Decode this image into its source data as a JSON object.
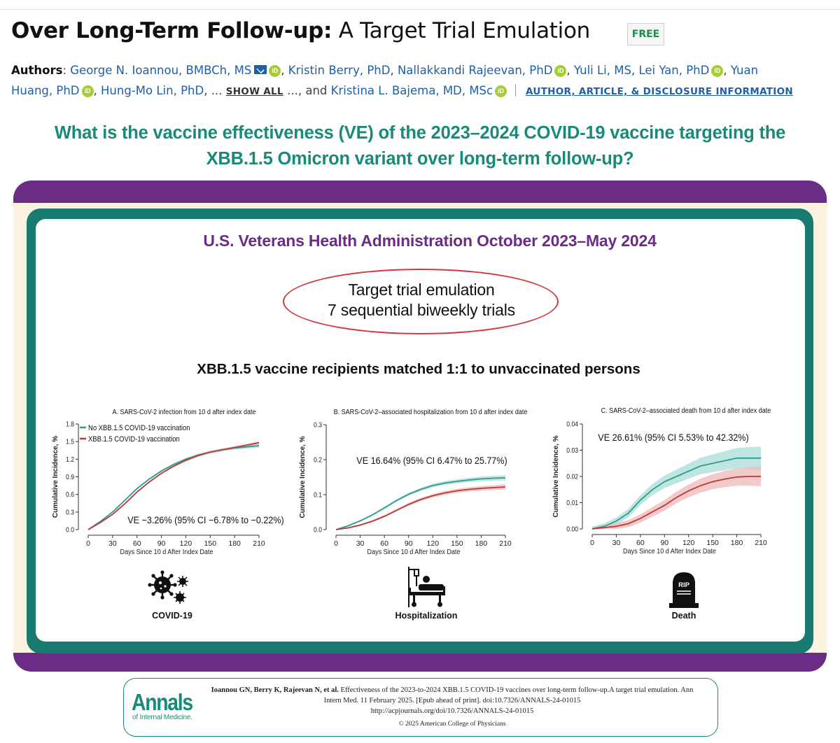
{
  "article": {
    "title_bold": "Over Long-Term Follow-up:",
    "title_rest": " A Target Trial Emulation",
    "free_badge": "FREE"
  },
  "authors": {
    "label": "Authors",
    "list": [
      "George N. Ioannou, BMBCh, MS",
      "Kristin Berry, PhD",
      "Nallakkandi Rajeevan, PhD",
      "Yuli Li, MS",
      "Lei Yan, PhD",
      "Yuan",
      "Huang, PhD",
      "Hung-Mo Lin, PhD",
      "Kristina L. Bajema, MD, MSc"
    ],
    "show_all": "SHOW ALL",
    "and_text": ", and",
    "ellipsis": "...",
    "ellipsis2": "...",
    "disclosure_link": "AUTHOR, ARTICLE, & DISCLOSURE INFORMATION",
    "orcid_glyph": "iD"
  },
  "abstract": {
    "question_line1": "What is the vaccine effectiveness (VE) of the 2023–2024 COVID-19 vaccine targeting the",
    "question_line2": "XBB.1.5 Omicron variant over long-term follow-up?",
    "study_title": "U.S. Veterans Health Administration October 2023–May 2024",
    "design_line1": "Target trial emulation",
    "design_line2": "7 sequential biweekly trials",
    "matching": "XBB.1.5 vaccine recipients matched 1:1 to unvaccinated persons"
  },
  "colors": {
    "teal": "#1a8a78",
    "purple": "#6b2c86",
    "series_unvacc": "#2e9c8e",
    "series_vacc": "#b83a3a",
    "band_unvacc": "#a8dcd6",
    "band_vacc": "#efb8b8"
  },
  "chart_data": [
    {
      "type": "line",
      "title": "A. SARS-CoV-2 infection from 10 d after index date",
      "xlabel": "Days Since 10 d After Index Date",
      "ylabel": "Cumulative Incidence, %",
      "xlim": [
        0,
        210
      ],
      "ylim": [
        0,
        1.8
      ],
      "xticks": [
        0,
        30,
        60,
        90,
        120,
        150,
        180,
        210
      ],
      "yticks": [
        0.0,
        0.3,
        0.6,
        0.9,
        1.2,
        1.5,
        1.8
      ],
      "ytick_labels": [
        "0.0",
        "0.3",
        "0.6",
        "0.9",
        "1.2",
        "1.5",
        "1.8"
      ],
      "annotation": "VE −3.26% (95% CI −6.78% to −0.22%)",
      "legend": [
        "No XBB.1.5 COVID-19 vaccination",
        "XBB.1.5 COVID-19 vaccination"
      ],
      "x": [
        0,
        15,
        30,
        45,
        60,
        75,
        90,
        105,
        120,
        135,
        150,
        165,
        180,
        195,
        210
      ],
      "series": [
        {
          "name": "No XBB.1.5 COVID-19 vaccination",
          "values": [
            0,
            0.14,
            0.3,
            0.5,
            0.7,
            0.86,
            1.0,
            1.11,
            1.2,
            1.27,
            1.32,
            1.36,
            1.39,
            1.41,
            1.43
          ],
          "band": 0.025
        },
        {
          "name": "XBB.1.5 COVID-19 vaccination",
          "values": [
            0,
            0.12,
            0.26,
            0.44,
            0.64,
            0.81,
            0.96,
            1.08,
            1.18,
            1.26,
            1.32,
            1.36,
            1.4,
            1.44,
            1.48
          ],
          "band": 0.02
        }
      ]
    },
    {
      "type": "line",
      "title": "B. SARS-CoV-2–associated hospitalization from 10 d after index date",
      "xlabel": "Days Since 10 d After Index Date",
      "ylabel": "Cumulative Incidence, %",
      "xlim": [
        0,
        210
      ],
      "ylim": [
        0,
        0.3
      ],
      "xticks": [
        0,
        30,
        60,
        90,
        120,
        150,
        180,
        210
      ],
      "yticks": [
        0.0,
        0.1,
        0.2,
        0.3
      ],
      "ytick_labels": [
        "0.0",
        "0.1",
        "0.2",
        "0.3"
      ],
      "annotation": "VE 16.64% (95% CI 6.47% to 25.77%)",
      "x": [
        0,
        15,
        30,
        45,
        60,
        75,
        90,
        105,
        120,
        135,
        150,
        165,
        180,
        195,
        210
      ],
      "series": [
        {
          "name": "No XBB.1.5 COVID-19 vaccination",
          "values": [
            0,
            0.011,
            0.025,
            0.042,
            0.062,
            0.083,
            0.101,
            0.115,
            0.126,
            0.133,
            0.138,
            0.142,
            0.145,
            0.147,
            0.148
          ],
          "band": 0.006
        },
        {
          "name": "XBB.1.5 COVID-19 vaccination",
          "values": [
            0,
            0.005,
            0.013,
            0.024,
            0.038,
            0.055,
            0.072,
            0.086,
            0.097,
            0.105,
            0.111,
            0.115,
            0.118,
            0.12,
            0.122
          ],
          "band": 0.006
        }
      ]
    },
    {
      "type": "line",
      "title": "C. SARS-CoV-2–associated death from 10 d after index date",
      "xlabel": "Days Since 10 d After Index Date",
      "ylabel": "Cumulative Incidence, %",
      "xlim": [
        0,
        210
      ],
      "ylim": [
        0,
        0.04
      ],
      "xticks": [
        0,
        30,
        60,
        90,
        120,
        150,
        180,
        210
      ],
      "yticks": [
        0.0,
        0.01,
        0.02,
        0.03,
        0.04
      ],
      "ytick_labels": [
        "0.00",
        "0.01",
        "0.02",
        "0.03",
        "0.04"
      ],
      "annotation": "VE 26.61% (95% CI 5.53% to 42.32%)",
      "x": [
        0,
        15,
        30,
        45,
        60,
        75,
        90,
        105,
        120,
        135,
        150,
        165,
        180,
        195,
        210
      ],
      "series": [
        {
          "name": "No XBB.1.5 COVID-19 vaccination",
          "values": [
            0,
            0.001,
            0.003,
            0.006,
            0.011,
            0.015,
            0.018,
            0.02,
            0.022,
            0.024,
            0.025,
            0.026,
            0.027,
            0.027,
            0.027
          ],
          "band": 0.0035
        },
        {
          "name": "XBB.1.5 COVID-19 vaccination",
          "values": [
            0,
            0.0005,
            0.001,
            0.002,
            0.004,
            0.0065,
            0.009,
            0.012,
            0.0145,
            0.0165,
            0.018,
            0.019,
            0.0198,
            0.02,
            0.02
          ],
          "band": 0.003
        }
      ]
    }
  ],
  "outcomes": {
    "covid": "COVID-19",
    "hospitalization": "Hospitalization",
    "death": "Death",
    "rip": "RIP"
  },
  "citation": {
    "brand": "Annals",
    "brand_sub": "of Internal Medicine.",
    "authors": "Ioannou GN, Berry K, Rajeevan N, et al.",
    "text_rest": " Effectiveness of the 2023-to-2024 XBB.1.5 COVID-19 vaccines over long-term follow-up.A target trial emulation. Ann Intern Med. 11 February 2025. [Epub ahead of print]. doi:10.7326/ANNALS-24-01015",
    "url": "http://acpjournals.org/doi/10.7326/ANNALS-24-01015",
    "copyright": "© 2025 American College of Physicians"
  }
}
